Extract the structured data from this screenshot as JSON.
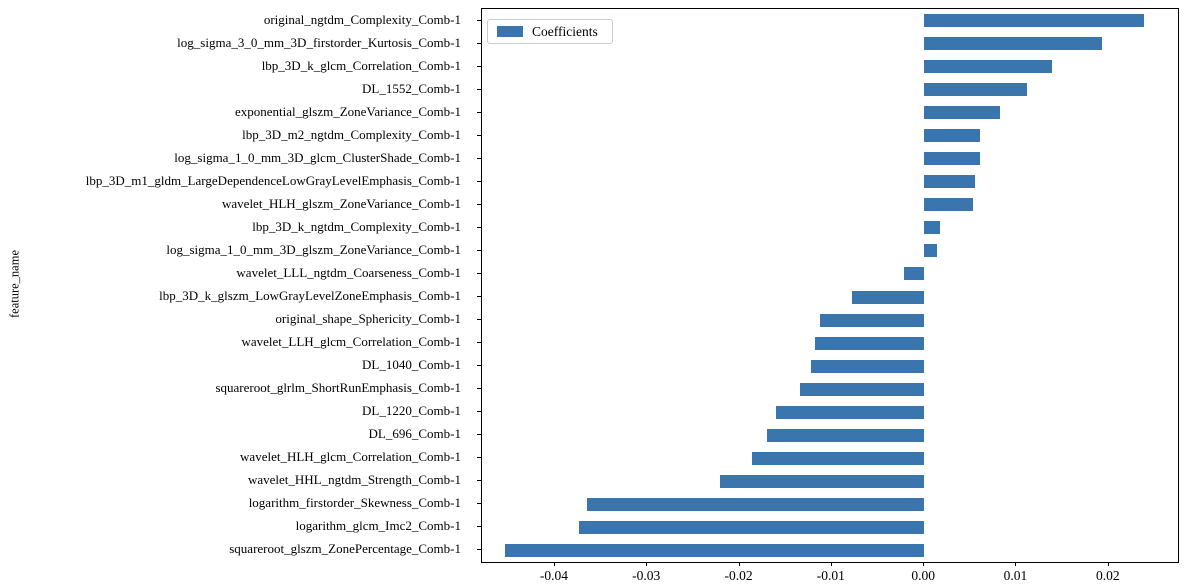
{
  "chart_data": {
    "type": "bar",
    "orientation": "horizontal",
    "title": "",
    "xlabel": "",
    "ylabel": "feature_name",
    "legend": {
      "label": "Coefficients",
      "position": "upper-left"
    },
    "bar_color": "#3b75ae",
    "grid": false,
    "xlim": [
      -0.0479,
      0.0275
    ],
    "xticks": [
      -0.04,
      -0.03,
      -0.02,
      -0.01,
      0.0,
      0.01,
      0.02
    ],
    "xtick_labels": [
      "-0.04",
      "-0.03",
      "-0.02",
      "-0.01",
      "0.00",
      "0.01",
      "0.02"
    ],
    "categories": [
      "original_ngtdm_Complexity_Comb-1",
      "log_sigma_3_0_mm_3D_firstorder_Kurtosis_Comb-1",
      "lbp_3D_k_glcm_Correlation_Comb-1",
      "DL_1552_Comb-1",
      "exponential_glszm_ZoneVariance_Comb-1",
      "lbp_3D_m2_ngtdm_Complexity_Comb-1",
      "log_sigma_1_0_mm_3D_glcm_ClusterShade_Comb-1",
      "lbp_3D_m1_gldm_LargeDependenceLowGrayLevelEmphasis_Comb-1",
      "wavelet_HLH_glszm_ZoneVariance_Comb-1",
      "lbp_3D_k_ngtdm_Complexity_Comb-1",
      "log_sigma_1_0_mm_3D_glszm_ZoneVariance_Comb-1",
      "wavelet_LLL_ngtdm_Coarseness_Comb-1",
      "lbp_3D_k_glszm_LowGrayLevelZoneEmphasis_Comb-1",
      "original_shape_Sphericity_Comb-1",
      "wavelet_LLH_glcm_Correlation_Comb-1",
      "DL_1040_Comb-1",
      "squareroot_glrlm_ShortRunEmphasis_Comb-1",
      "DL_1220_Comb-1",
      "DL_696_Comb-1",
      "wavelet_HLH_glcm_Correlation_Comb-1",
      "wavelet_HHL_ngtdm_Strength_Comb-1",
      "logarithm_firstorder_Skewness_Comb-1",
      "logarithm_glcm_Imc2_Comb-1",
      "squareroot_glszm_ZonePercentage_Comb-1"
    ],
    "values": [
      0.0238,
      0.0193,
      0.0138,
      0.0111,
      0.0082,
      0.0061,
      0.006,
      0.0055,
      0.0053,
      0.0017,
      0.0014,
      -0.0022,
      -0.0078,
      -0.0113,
      -0.0118,
      -0.0123,
      -0.0134,
      -0.016,
      -0.017,
      -0.0186,
      -0.0221,
      -0.0365,
      -0.0374,
      -0.0454
    ]
  }
}
